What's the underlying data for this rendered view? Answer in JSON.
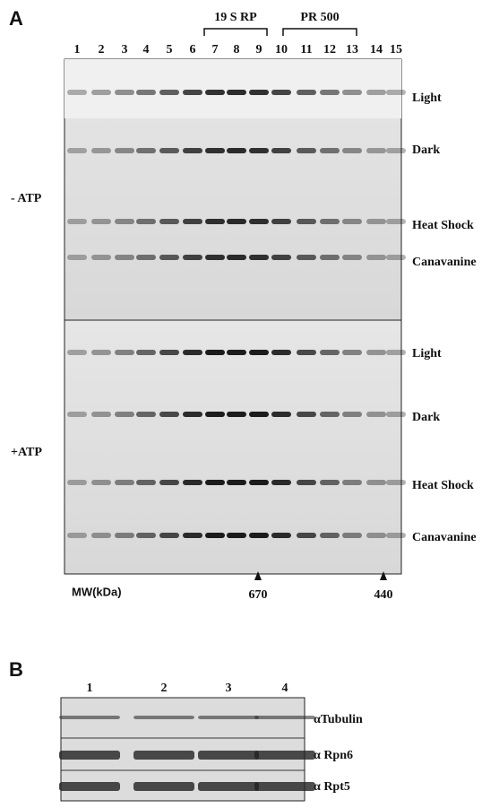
{
  "panel_a": {
    "label": "A",
    "brackets": [
      {
        "label": "19 S RP"
      },
      {
        "label": "PR 500"
      }
    ],
    "lanes": [
      "1",
      "2",
      "3",
      "4",
      "5",
      "6",
      "7",
      "8",
      "9",
      "10",
      "11",
      "12",
      "13",
      "14",
      "15"
    ],
    "conditions": [
      {
        "label": "- ATP",
        "rows": [
          "Light",
          "Dark",
          "Heat Shock",
          "Canavanine"
        ]
      },
      {
        "label": "+ATP",
        "rows": [
          "Light",
          "Dark",
          "Heat Shock",
          "Canavanine"
        ]
      }
    ],
    "mw_label": "MW(kDa)",
    "markers": [
      "670",
      "440"
    ]
  },
  "panel_b": {
    "label": "B",
    "lanes": [
      "1",
      "2",
      "3",
      "4"
    ],
    "rows": [
      "αTubulin",
      "α Rpn6",
      "α Rpt5"
    ]
  }
}
